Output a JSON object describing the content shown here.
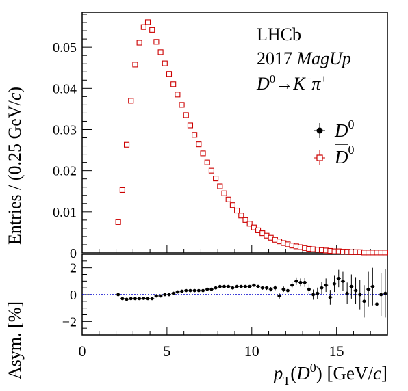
{
  "chart_data": [
    {
      "type": "scatter",
      "panel": "main",
      "ylabel": "Entries / (0.25 GeV/c)",
      "xlim": [
        0,
        18
      ],
      "ylim": [
        0,
        0.0585
      ],
      "xticks": [
        "0",
        "5",
        "10",
        "15"
      ],
      "yticks": [
        "0",
        "0.01",
        "0.02",
        "0.03",
        "0.04",
        "0.05"
      ],
      "grid": false,
      "legend_position": "top-right",
      "annotation": {
        "line1": "LHCb",
        "line2_year": "2017 ",
        "line2_pol": "MagUp",
        "decay_d": "D",
        "decay_d_sup": "0",
        "decay_arrow": "→",
        "decay_k": "K",
        "decay_k_sup": "−",
        "decay_pi": "π",
        "decay_pi_sup": "+"
      },
      "legend": [
        {
          "letter": "D",
          "sup": "0",
          "bar": false,
          "color": "#000000",
          "marker": "filled-circle"
        },
        {
          "letter": "D",
          "sup": "0",
          "bar": true,
          "color": "#cc0000",
          "marker": "open-square"
        }
      ],
      "series": [
        {
          "marker": "filled-circle",
          "color": "#000000",
          "x": [
            2.125,
            2.375,
            2.625,
            2.875,
            3.125,
            3.375,
            3.625,
            3.875,
            4.125,
            4.375,
            4.625,
            4.875,
            5.125,
            5.375,
            5.625,
            5.875,
            6.125,
            6.375,
            6.625,
            6.875,
            7.125,
            7.375,
            7.625,
            7.875,
            8.125,
            8.375,
            8.625,
            8.875,
            9.125,
            9.375,
            9.625,
            9.875,
            10.125,
            10.375,
            10.625,
            10.875,
            11.125,
            11.375,
            11.625,
            11.875,
            12.125,
            12.375,
            12.625,
            12.875,
            13.125,
            13.375,
            13.625,
            13.875,
            14.125,
            14.375,
            14.625,
            14.875,
            15.125,
            15.375,
            15.625,
            15.875,
            16.125,
            16.375,
            16.625,
            16.875,
            17.125,
            17.375,
            17.625,
            17.875
          ],
          "y": [
            0.0075,
            0.0153,
            0.0262,
            0.0369,
            0.0457,
            0.051,
            0.0548,
            0.056,
            0.0541,
            0.0513,
            0.0489,
            0.0462,
            0.0436,
            0.0411,
            0.0386,
            0.0361,
            0.0336,
            0.0311,
            0.0288,
            0.0265,
            0.0243,
            0.0221,
            0.0201,
            0.0182,
            0.0163,
            0.0146,
            0.0131,
            0.0117,
            0.0104,
            0.0092,
            0.0081,
            0.0071,
            0.0063,
            0.0055,
            0.0048,
            0.0042,
            0.0037,
            0.0032,
            0.0028,
            0.0024,
            0.0021,
            0.0018,
            0.0016,
            0.0014,
            0.0012,
            0.001,
            0.0009,
            0.0008,
            0.0007,
            0.0006,
            0.0005,
            0.0004,
            0.0004,
            0.0003,
            0.0003,
            0.0002,
            0.0002,
            0.0002,
            0.0001,
            0.0001,
            0.0001,
            0.0001,
            0.0001,
            0.0001
          ]
        },
        {
          "marker": "open-square",
          "color": "#cc0000",
          "x": [
            2.125,
            2.375,
            2.625,
            2.875,
            3.125,
            3.375,
            3.625,
            3.875,
            4.125,
            4.375,
            4.625,
            4.875,
            5.125,
            5.375,
            5.625,
            5.875,
            6.125,
            6.375,
            6.625,
            6.875,
            7.125,
            7.375,
            7.625,
            7.875,
            8.125,
            8.375,
            8.625,
            8.875,
            9.125,
            9.375,
            9.625,
            9.875,
            10.125,
            10.375,
            10.625,
            10.875,
            11.125,
            11.375,
            11.625,
            11.875,
            12.125,
            12.375,
            12.625,
            12.875,
            13.125,
            13.375,
            13.625,
            13.875,
            14.125,
            14.375,
            14.625,
            14.875,
            15.125,
            15.375,
            15.625,
            15.875,
            16.125,
            16.375,
            16.625,
            16.875,
            17.125,
            17.375,
            17.625,
            17.875
          ],
          "y": [
            0.0075,
            0.0153,
            0.0263,
            0.037,
            0.0458,
            0.0511,
            0.0549,
            0.0561,
            0.0542,
            0.0513,
            0.0488,
            0.0461,
            0.0435,
            0.041,
            0.0385,
            0.036,
            0.0335,
            0.031,
            0.0287,
            0.0264,
            0.0242,
            0.022,
            0.02,
            0.0181,
            0.0162,
            0.0145,
            0.013,
            0.0116,
            0.0103,
            0.0091,
            0.008,
            0.0071,
            0.0062,
            0.0055,
            0.0048,
            0.0042,
            0.0037,
            0.0032,
            0.0028,
            0.0024,
            0.0021,
            0.0018,
            0.0016,
            0.0014,
            0.0012,
            0.001,
            0.0009,
            0.0008,
            0.0007,
            0.0006,
            0.0005,
            0.0004,
            0.0004,
            0.0003,
            0.0003,
            0.0002,
            0.0002,
            0.0002,
            0.0001,
            0.0001,
            0.0001,
            0.0001,
            0.0001,
            0.0001
          ]
        }
      ]
    },
    {
      "type": "scatter",
      "panel": "ratio",
      "ylabel": "Asym. [%]",
      "xlim": [
        0,
        18
      ],
      "ylim": [
        -3,
        3
      ],
      "xticks": [
        "0",
        "5",
        "10",
        "15"
      ],
      "yticks": [
        "−2",
        "0",
        "2"
      ],
      "reference_line": {
        "y": 0,
        "style": "dotted",
        "color": "#0000cc"
      },
      "series": [
        {
          "marker": "filled-circle",
          "color": "#000000",
          "x": [
            2.125,
            2.375,
            2.625,
            2.875,
            3.125,
            3.375,
            3.625,
            3.875,
            4.125,
            4.375,
            4.625,
            4.875,
            5.125,
            5.375,
            5.625,
            5.875,
            6.125,
            6.375,
            6.625,
            6.875,
            7.125,
            7.375,
            7.625,
            7.875,
            8.125,
            8.375,
            8.625,
            8.875,
            9.125,
            9.375,
            9.625,
            9.875,
            10.125,
            10.375,
            10.625,
            10.875,
            11.125,
            11.375,
            11.625,
            11.875,
            12.125,
            12.375,
            12.625,
            12.875,
            13.125,
            13.375,
            13.625,
            13.875,
            14.125,
            14.375,
            14.625,
            14.875,
            15.125,
            15.375,
            15.625,
            15.875,
            16.125,
            16.375,
            16.625,
            16.875,
            17.125,
            17.375,
            17.625,
            17.875
          ],
          "y": [
            0.0,
            -0.3,
            -0.35,
            -0.3,
            -0.3,
            -0.3,
            -0.28,
            -0.3,
            -0.3,
            -0.1,
            -0.1,
            0.0,
            0.0,
            0.1,
            0.2,
            0.25,
            0.3,
            0.3,
            0.3,
            0.3,
            0.3,
            0.4,
            0.4,
            0.5,
            0.6,
            0.6,
            0.6,
            0.5,
            0.6,
            0.6,
            0.6,
            0.6,
            0.7,
            0.6,
            0.5,
            0.5,
            0.4,
            0.5,
            -0.1,
            0.4,
            0.3,
            0.7,
            1.0,
            0.9,
            0.9,
            0.4,
            0.0,
            0.1,
            0.5,
            0.7,
            -0.2,
            0.8,
            1.2,
            1.0,
            0.1,
            0.6,
            0.3,
            0.0,
            -0.5,
            0.4,
            0.6,
            -0.7,
            0.0,
            0.1
          ],
          "err": [
            0.1,
            0.1,
            0.1,
            0.1,
            0.1,
            0.1,
            0.1,
            0.1,
            0.1,
            0.1,
            0.1,
            0.1,
            0.1,
            0.1,
            0.1,
            0.1,
            0.1,
            0.1,
            0.1,
            0.1,
            0.1,
            0.1,
            0.1,
            0.1,
            0.1,
            0.1,
            0.1,
            0.1,
            0.1,
            0.1,
            0.1,
            0.1,
            0.12,
            0.12,
            0.14,
            0.15,
            0.16,
            0.18,
            0.2,
            0.2,
            0.22,
            0.25,
            0.28,
            0.3,
            0.32,
            0.35,
            0.38,
            0.42,
            0.45,
            0.5,
            0.55,
            0.6,
            0.65,
            0.7,
            0.8,
            0.9,
            1.0,
            1.1,
            1.2,
            1.3,
            1.4,
            1.5,
            1.6,
            1.8
          ]
        }
      ]
    }
  ],
  "axis_titles": {
    "x_p": "p",
    "x_sub": "T",
    "x_rest_open": "(",
    "x_d": "D",
    "x_d_sup": "0",
    "x_rest_close": ") [GeV/",
    "x_c": "c",
    "x_end": "]",
    "y_main_prefix": "Entries / (0.25 GeV/",
    "y_main_c": "c",
    "y_main_end": ")",
    "y_ratio": "Asym. [%]"
  }
}
